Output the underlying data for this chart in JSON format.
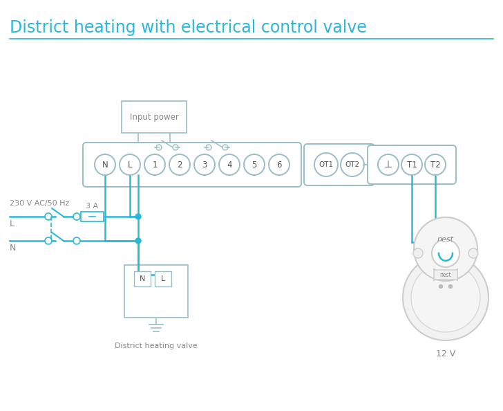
{
  "title": "District heating with electrical control valve",
  "title_color": "#29b8d8",
  "title_fontsize": 17,
  "bg_color": "#ffffff",
  "wire_color": "#29b8d8",
  "box_color": "#9abdc8",
  "text_color": "#888888",
  "dark_text": "#555555",
  "terminal_labels": [
    "N",
    "L",
    "1",
    "2",
    "3",
    "4",
    "5",
    "6"
  ],
  "ot_labels": [
    "OT1",
    "OT2"
  ],
  "t_labels": [
    "⊥",
    "T1",
    "T2"
  ],
  "label_230v": "230 V AC/50 Hz",
  "label_L": "L",
  "label_N": "N",
  "label_3A": "3 A",
  "label_input_power": "Input power",
  "label_district": "District heating valve",
  "label_12v": "12 V",
  "label_nest": "nest"
}
